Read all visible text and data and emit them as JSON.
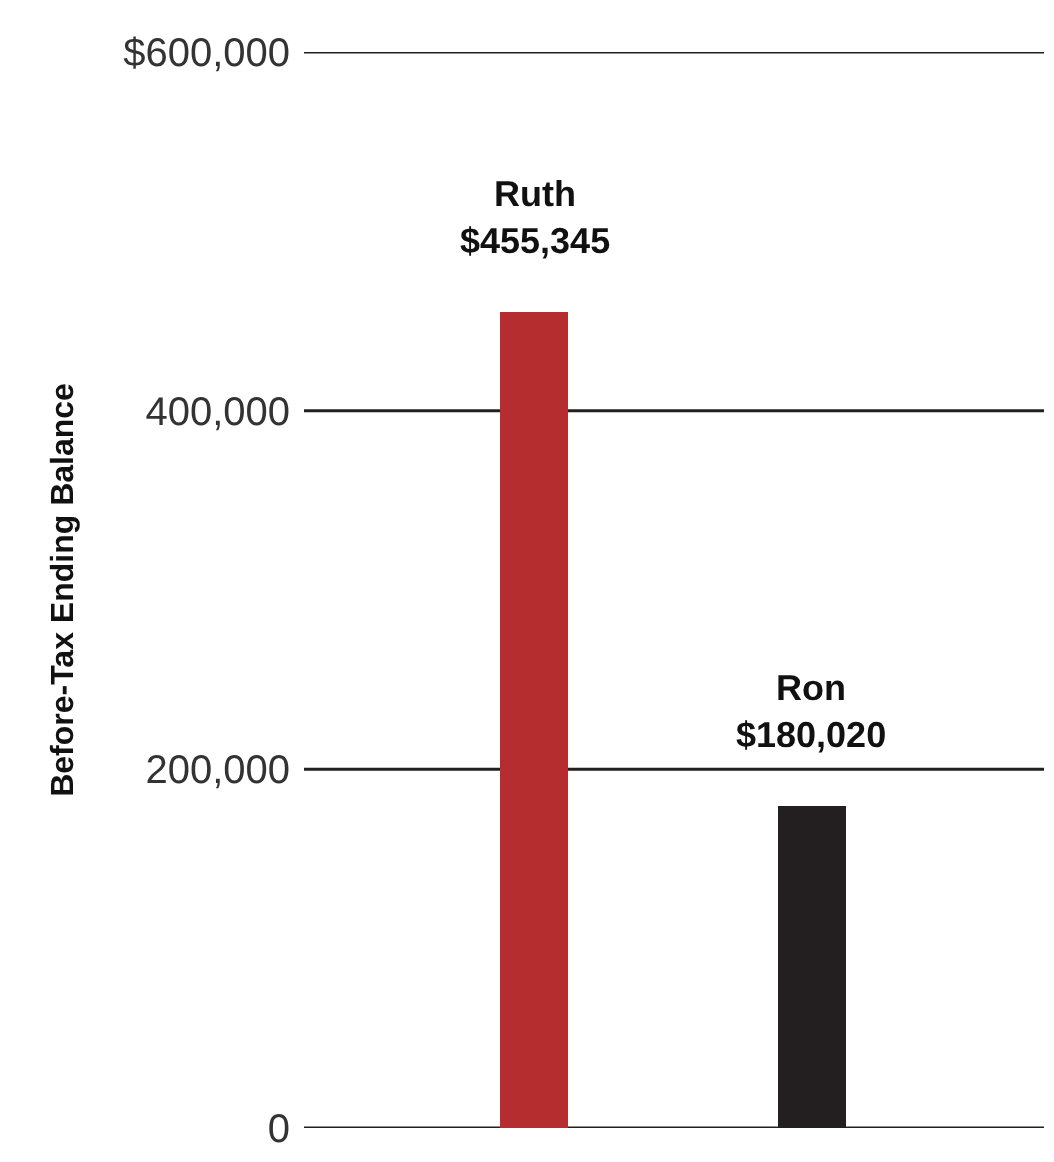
{
  "chart_data": {
    "type": "bar",
    "ylabel": "Before-Tax Ending Balance",
    "categories": [
      "Ruth",
      "Ron"
    ],
    "values": [
      455345,
      180020
    ],
    "colors": [
      "#b52d2f",
      "#231f20"
    ],
    "value_labels": [
      "$455,345",
      "$180,020"
    ],
    "ylim": [
      0,
      600000
    ],
    "yticks": [
      {
        "value": 0,
        "label": "0"
      },
      {
        "value": 200000,
        "label": "200,000"
      },
      {
        "value": 400000,
        "label": "400,000"
      },
      {
        "value": 600000,
        "label": "$600,000"
      }
    ],
    "grid": "y",
    "tick_labels": "y"
  }
}
